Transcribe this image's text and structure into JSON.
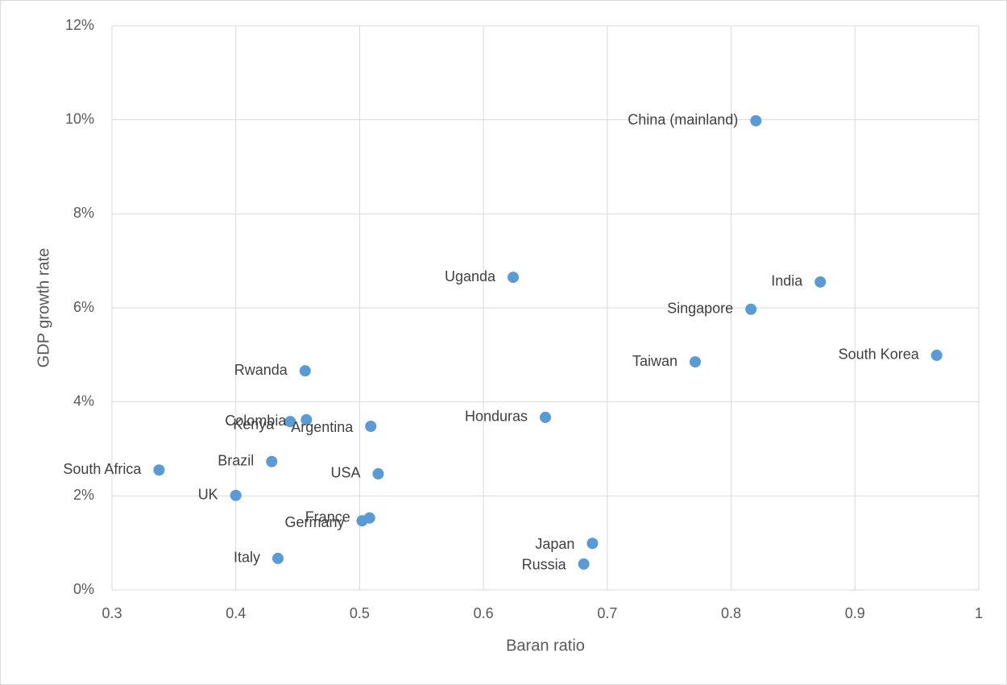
{
  "chart_data": {
    "type": "scatter",
    "x_label": "Baran ratio",
    "y_label": "GDP growth rate",
    "labels": [
      "China (mainland)",
      "India",
      "Singapore",
      "South Korea",
      "Taiwan",
      "Uganda",
      "Honduras",
      "Rwanda",
      "Colombia",
      "Kenya",
      "Argentina",
      "Brazil",
      "South Africa",
      "USA",
      "UK",
      "France",
      "Germany",
      "Japan",
      "Russia",
      "Italy"
    ],
    "x": [
      0.82,
      0.872,
      0.816,
      0.966,
      0.771,
      0.624,
      0.65,
      0.456,
      0.444,
      0.457,
      0.509,
      0.429,
      0.338,
      0.515,
      0.4,
      0.508,
      0.502,
      0.688,
      0.681,
      0.434
    ],
    "values": [
      9.98,
      6.55,
      5.97,
      4.99,
      4.85,
      6.65,
      3.67,
      4.66,
      3.58,
      3.62,
      3.48,
      2.73,
      2.55,
      2.47,
      2.01,
      1.53,
      1.47,
      0.99,
      0.55,
      0.67
    ],
    "color": "#5b9bd5",
    "xlim": [
      0.3,
      1
    ],
    "xticks": [
      0.3,
      0.4,
      0.5,
      0.6,
      0.7,
      0.8,
      0.9,
      1
    ],
    "ylim": [
      0,
      12
    ],
    "yticks": [
      {
        "value": 0,
        "label": "0%"
      },
      {
        "value": 2,
        "label": "2%"
      },
      {
        "value": 4,
        "label": "4%"
      },
      {
        "value": 6,
        "label": "6%"
      },
      {
        "value": 8,
        "label": "8%"
      },
      {
        "value": 10,
        "label": "10%"
      },
      {
        "value": 12,
        "label": "12%"
      }
    ],
    "grid": true
  }
}
